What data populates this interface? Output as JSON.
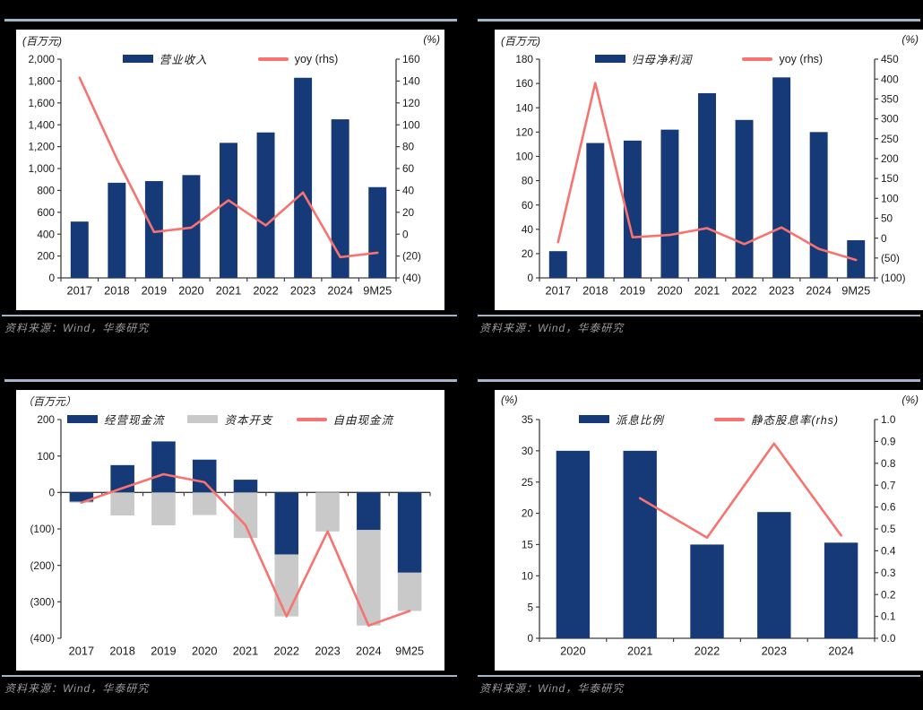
{
  "colors": {
    "navy": "#163A78",
    "gray": "#C9C9C9",
    "salmon": "#F8736F",
    "axis": "#3F3F3F",
    "rule": "#A3B4CD",
    "source_text": "#9B9B9B"
  },
  "chart_data": [
    {
      "type": "bar",
      "name": "operating-revenue",
      "left_unit": "(百万元)",
      "right_unit": "(%)",
      "source": "资料来源：Wind，华泰研究",
      "categories": [
        "2017",
        "2018",
        "2019",
        "2020",
        "2021",
        "2022",
        "2023",
        "2024",
        "9M25"
      ],
      "left_axis": {
        "min": 0,
        "max": 2000,
        "step": 200,
        "labels": [
          "2,000",
          "1,800",
          "1,600",
          "1,400",
          "1,200",
          "1,000",
          "800",
          "600",
          "400",
          "200",
          "0"
        ]
      },
      "right_axis": {
        "min": -40,
        "max": 160,
        "step": 20,
        "labels": [
          "160",
          "140",
          "120",
          "100",
          "80",
          "60",
          "40",
          "20",
          "0",
          "(20)",
          "(40)"
        ]
      },
      "bar_ratio": 0.48,
      "series": [
        {
          "name": "营业收入",
          "type": "bar",
          "axis": "left",
          "color": "navy",
          "values": [
            515,
            870,
            885,
            940,
            1235,
            1330,
            1830,
            1450,
            830
          ]
        },
        {
          "name": "yoy (rhs)",
          "type": "line",
          "axis": "right",
          "color": "salmon",
          "values": [
            143,
            69,
            2,
            6,
            31,
            8,
            38,
            -21,
            -17
          ]
        }
      ]
    },
    {
      "type": "bar",
      "name": "net-profit",
      "left_unit": "(百万元)",
      "right_unit": "(%)",
      "source": "资料来源：Wind，华泰研究",
      "categories": [
        "2017",
        "2018",
        "2019",
        "2020",
        "2021",
        "2022",
        "2023",
        "2024",
        "9M25"
      ],
      "left_axis": {
        "min": 0,
        "max": 180,
        "step": 20,
        "labels": [
          "180",
          "160",
          "140",
          "120",
          "100",
          "80",
          "60",
          "40",
          "20",
          "0"
        ]
      },
      "right_axis": {
        "min": -100,
        "max": 450,
        "step": 50,
        "labels": [
          "450",
          "400",
          "350",
          "300",
          "250",
          "200",
          "150",
          "100",
          "50",
          "0",
          "(50)",
          "(100)"
        ]
      },
      "bar_ratio": 0.48,
      "series": [
        {
          "name": "归母净利润",
          "type": "bar",
          "axis": "left",
          "color": "navy",
          "values": [
            22,
            111,
            113,
            122,
            152,
            130,
            165,
            120,
            31
          ]
        },
        {
          "name": "yoy (rhs)",
          "type": "line",
          "axis": "right",
          "color": "salmon",
          "values": [
            -10,
            390,
            2,
            8,
            25,
            -15,
            27,
            -27,
            -55
          ]
        }
      ]
    },
    {
      "type": "bar",
      "name": "cash-flow",
      "left_unit": "（百万元）",
      "right_unit": null,
      "source": "资料来源：Wind，华泰研究",
      "categories": [
        "2017",
        "2018",
        "2019",
        "2020",
        "2021",
        "2022",
        "2023",
        "2024",
        "9M25"
      ],
      "left_axis": {
        "min": -400,
        "max": 200,
        "step": 100,
        "labels": [
          "200",
          "100",
          "0",
          "(100)",
          "(200)",
          "(300)",
          "(400)"
        ]
      },
      "right_axis": null,
      "bar_ratio": 0.58,
      "series": [
        {
          "name": "经营现金流",
          "type": "bar",
          "axis": "left",
          "color": "navy",
          "values": [
            -25,
            75,
            140,
            90,
            35,
            -170,
            0,
            -103,
            -220
          ]
        },
        {
          "name": "资本开支",
          "type": "bar",
          "axis": "left",
          "color": "gray",
          "values": [
            -3,
            -63,
            -90,
            -62,
            -125,
            -170,
            -107,
            -262,
            -105
          ]
        },
        {
          "name": "自由现金流",
          "type": "line",
          "axis": "left",
          "color": "salmon",
          "values": [
            -28,
            12,
            50,
            28,
            -90,
            -340,
            -107,
            -365,
            -325
          ]
        }
      ]
    },
    {
      "type": "bar",
      "name": "dividend",
      "left_unit": "(%)",
      "right_unit": "(%)",
      "source": "资料来源：Wind，华泰研究",
      "categories": [
        "2020",
        "2021",
        "2022",
        "2023",
        "2024"
      ],
      "left_axis": {
        "min": 0,
        "max": 35,
        "step": 5,
        "labels": [
          "35",
          "30",
          "25",
          "20",
          "15",
          "10",
          "5",
          "0"
        ]
      },
      "right_axis": {
        "min": 0,
        "max": 1.0,
        "step": 0.1,
        "labels": [
          "1.0",
          "0.9",
          "0.8",
          "0.7",
          "0.6",
          "0.5",
          "0.4",
          "0.3",
          "0.2",
          "0.1",
          "0.0"
        ]
      },
      "bar_ratio": 0.5,
      "series": [
        {
          "name": "派息比例",
          "type": "bar",
          "axis": "left",
          "color": "navy",
          "values": [
            30,
            30,
            15,
            20.2,
            15.3
          ]
        },
        {
          "name": "静态股息率(rhs)",
          "type": "line",
          "axis": "right",
          "color": "salmon",
          "values": [
            null,
            0.64,
            0.46,
            0.89,
            0.47
          ]
        }
      ]
    }
  ]
}
